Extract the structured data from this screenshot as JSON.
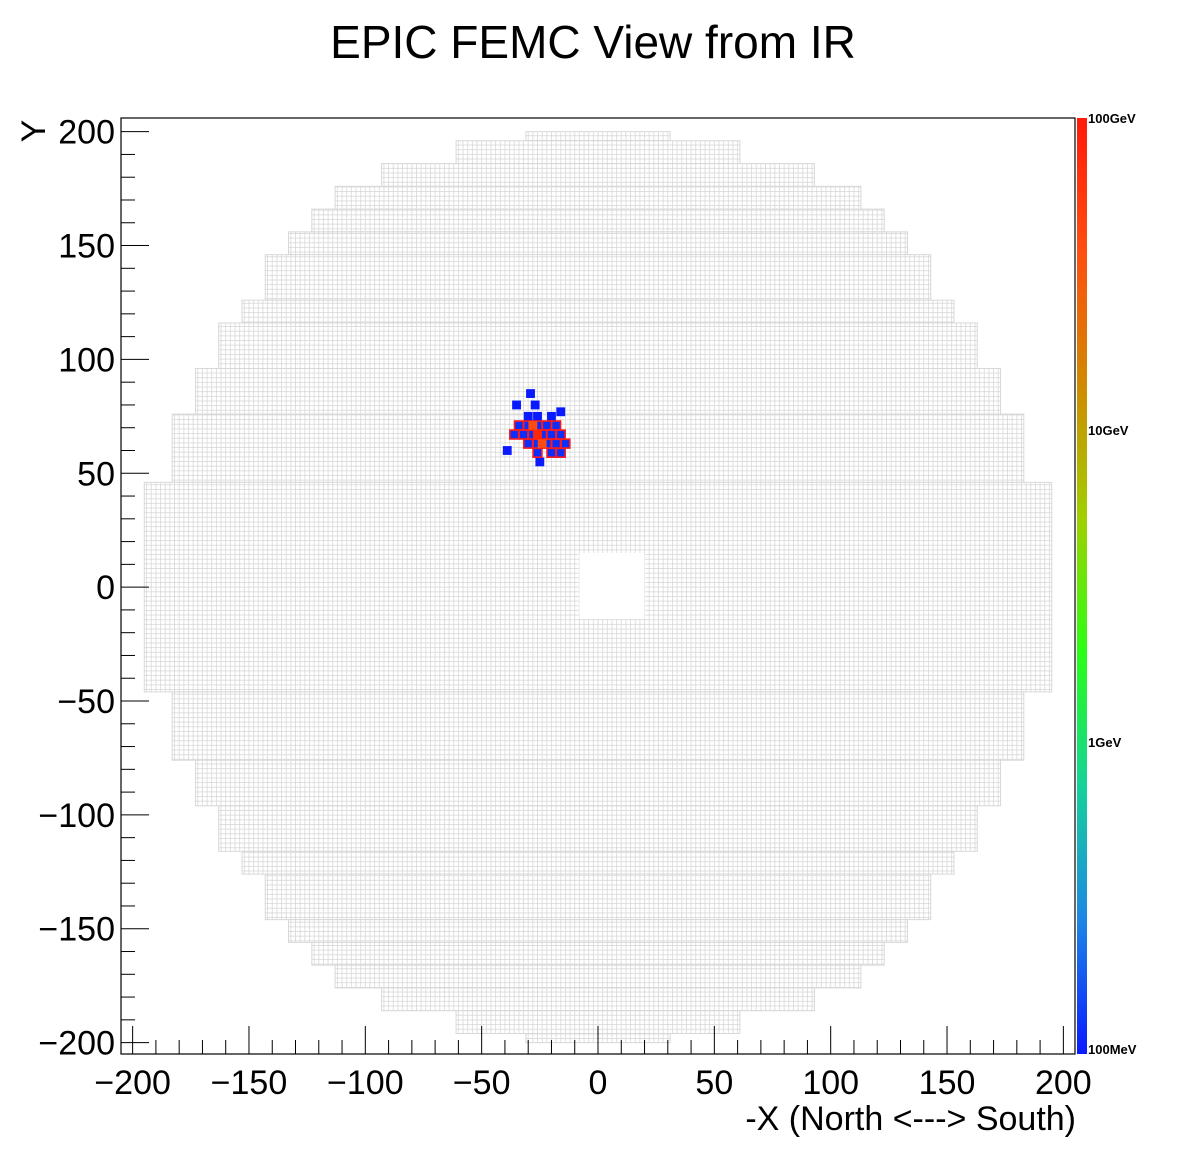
{
  "chart_data": {
    "type": "heatmap",
    "title": "EPIC FEMC View from IR",
    "xlabel": "-X (North <---> South)",
    "ylabel": "Y",
    "xlim": [
      -205,
      205
    ],
    "ylim": [
      -205,
      206
    ],
    "x_ticks": [
      {
        "value": -200,
        "label": "−200"
      },
      {
        "value": -150,
        "label": "−150"
      },
      {
        "value": -100,
        "label": "−100"
      },
      {
        "value": -50,
        "label": "−50"
      },
      {
        "value": 0,
        "label": "0"
      },
      {
        "value": 50,
        "label": "50"
      },
      {
        "value": 100,
        "label": "100"
      },
      {
        "value": 150,
        "label": "150"
      },
      {
        "value": 200,
        "label": "200"
      }
    ],
    "y_ticks": [
      {
        "value": 200,
        "label": "200"
      },
      {
        "value": 150,
        "label": "150"
      },
      {
        "value": 100,
        "label": "100"
      },
      {
        "value": 50,
        "label": "50"
      },
      {
        "value": 0,
        "label": "0"
      },
      {
        "value": -50,
        "label": "−50"
      },
      {
        "value": -100,
        "label": "−100"
      },
      {
        "value": -150,
        "label": "−150"
      },
      {
        "value": -200,
        "label": "−200"
      }
    ],
    "colorbar": {
      "scale": "log",
      "labels": [
        {
          "value": 0.1,
          "label": "100MeV"
        },
        {
          "value": 1,
          "label": "1GeV"
        },
        {
          "value": 10,
          "label": "10GeV"
        },
        {
          "value": 100,
          "label": "100GeV"
        }
      ],
      "colors": [
        "#0a1aff",
        "#1c86e6",
        "#14d29a",
        "#28ff14",
        "#a0d000",
        "#d08a00",
        "#ff4e10",
        "#ff1a0a"
      ]
    },
    "detector": {
      "cell_size": 2.0,
      "grid_color": "#d8d8d8",
      "beam_hole": {
        "x": [
          -8,
          20
        ],
        "y": [
          -14,
          15
        ]
      },
      "rows": [
        {
          "y": [
            196,
            200
          ],
          "x": [
            -31,
            31
          ]
        },
        {
          "y": [
            186,
            196
          ],
          "x": [
            -61,
            61
          ]
        },
        {
          "y": [
            176,
            186
          ],
          "x": [
            -93,
            93
          ]
        },
        {
          "y": [
            166,
            176
          ],
          "x": [
            -113,
            113
          ]
        },
        {
          "y": [
            156,
            166
          ],
          "x": [
            -123,
            123
          ]
        },
        {
          "y": [
            146,
            156
          ],
          "x": [
            -133,
            133
          ]
        },
        {
          "y": [
            126,
            146
          ],
          "x": [
            -143,
            143
          ]
        },
        {
          "y": [
            116,
            126
          ],
          "x": [
            -153,
            153
          ]
        },
        {
          "y": [
            96,
            116
          ],
          "x": [
            -163,
            163
          ]
        },
        {
          "y": [
            76,
            96
          ],
          "x": [
            -173,
            173
          ]
        },
        {
          "y": [
            46,
            76
          ],
          "x": [
            -183,
            183
          ]
        },
        {
          "y": [
            -46,
            46
          ],
          "x": [
            -195,
            195
          ]
        },
        {
          "y": [
            -76,
            -46
          ],
          "x": [
            -183,
            183
          ]
        },
        {
          "y": [
            -96,
            -76
          ],
          "x": [
            -173,
            173
          ]
        },
        {
          "y": [
            -116,
            -96
          ],
          "x": [
            -163,
            163
          ]
        },
        {
          "y": [
            -126,
            -116
          ],
          "x": [
            -153,
            153
          ]
        },
        {
          "y": [
            -146,
            -126
          ],
          "x": [
            -143,
            143
          ]
        },
        {
          "y": [
            -156,
            -146
          ],
          "x": [
            -133,
            133
          ]
        },
        {
          "y": [
            -166,
            -156
          ],
          "x": [
            -123,
            123
          ]
        },
        {
          "y": [
            -176,
            -166
          ],
          "x": [
            -113,
            113
          ]
        },
        {
          "y": [
            -186,
            -176
          ],
          "x": [
            -93,
            93
          ]
        },
        {
          "y": [
            -196,
            -186
          ],
          "x": [
            -61,
            61
          ]
        },
        {
          "y": [
            -200,
            -196
          ],
          "x": [
            -31,
            31
          ]
        }
      ]
    },
    "hits": [
      {
        "x": -29,
        "y": 85,
        "e": 0.1
      },
      {
        "x": -35,
        "y": 80,
        "e": 0.1
      },
      {
        "x": -27,
        "y": 80,
        "e": 0.1
      },
      {
        "x": -16,
        "y": 77,
        "e": 0.1
      },
      {
        "x": -39,
        "y": 60,
        "e": 0.1
      },
      {
        "x": -25,
        "y": 55,
        "e": 0.1
      },
      {
        "x": -30,
        "y": 75,
        "e": 0.1
      },
      {
        "x": -26,
        "y": 75,
        "e": 0.1
      },
      {
        "x": -20,
        "y": 75,
        "e": 0.1
      },
      {
        "x": -34,
        "y": 71,
        "e": 0.12
      },
      {
        "x": -30,
        "y": 71,
        "e": 0.12
      },
      {
        "x": -26,
        "y": 71,
        "e": 0.12
      },
      {
        "x": -22,
        "y": 71,
        "e": 0.12
      },
      {
        "x": -18,
        "y": 71,
        "e": 0.12
      },
      {
        "x": -36,
        "y": 67,
        "e": 0.12
      },
      {
        "x": -32,
        "y": 67,
        "e": 0.12
      },
      {
        "x": -28,
        "y": 67,
        "e": 0.12
      },
      {
        "x": -24,
        "y": 67,
        "e": 0.12
      },
      {
        "x": -20,
        "y": 67,
        "e": 0.12
      },
      {
        "x": -16,
        "y": 67,
        "e": 0.12
      },
      {
        "x": -30,
        "y": 63,
        "e": 0.12
      },
      {
        "x": -26,
        "y": 63,
        "e": 0.12
      },
      {
        "x": -22,
        "y": 63,
        "e": 0.12
      },
      {
        "x": -18,
        "y": 63,
        "e": 0.12
      },
      {
        "x": -14,
        "y": 63,
        "e": 0.12
      },
      {
        "x": -26,
        "y": 59,
        "e": 0.12
      },
      {
        "x": -20,
        "y": 59,
        "e": 0.12
      },
      {
        "x": -16,
        "y": 59,
        "e": 0.12
      },
      {
        "x": -28,
        "y": 71,
        "e": 40
      },
      {
        "x": -26,
        "y": 67,
        "e": 80
      },
      {
        "x": -24,
        "y": 63,
        "e": 40
      }
    ]
  }
}
